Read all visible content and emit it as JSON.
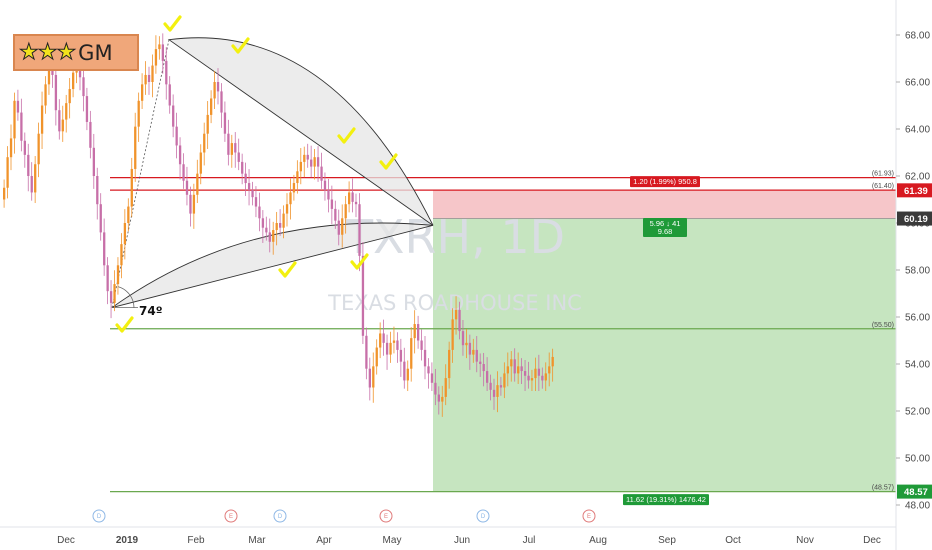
{
  "logo": {
    "stars": "★★★",
    "text": "GM"
  },
  "watermark": {
    "symbol": "TXRH, 1D",
    "name": "TEXAS ROADHOUSE INC"
  },
  "angle_label": "74º",
  "colors": {
    "up": "#f0932b",
    "down": "#c76fa8",
    "red_line": "#d71920",
    "green_line": "#6aa84f",
    "profit_zone": "#c6e5c0",
    "loss_zone": "#f6c6c9",
    "check": "#f3f00f",
    "logo_bg": "#f0a77a"
  },
  "chart_data": {
    "type": "candlestick",
    "title": "",
    "xlabel": "",
    "ylabel": "",
    "ylim": [
      47.0,
      69.5
    ],
    "y_ticks": [
      "48.00",
      "50.00",
      "52.00",
      "54.00",
      "56.00",
      "58.00",
      "60.00",
      "62.00",
      "64.00",
      "66.00",
      "68.00"
    ],
    "x_ticks": [
      "Dec",
      "2019",
      "Feb",
      "Mar",
      "Apr",
      "May",
      "Jun",
      "Jul",
      "Aug",
      "Sep",
      "Oct",
      "Nov",
      "Dec"
    ],
    "closes": [
      61.5,
      62.8,
      63.6,
      65.2,
      64.7,
      63.5,
      62.9,
      62.0,
      61.3,
      62.5,
      63.8,
      65.0,
      65.9,
      66.8,
      66.3,
      64.8,
      63.9,
      64.4,
      65.1,
      65.7,
      66.4,
      66.9,
      66.2,
      65.4,
      64.3,
      63.2,
      62.0,
      60.8,
      59.6,
      58.2,
      57.1,
      56.6,
      57.4,
      58.2,
      59.1,
      60.0,
      60.7,
      62.3,
      64.1,
      65.2,
      65.9,
      66.3,
      66.0,
      66.7,
      67.4,
      67.6,
      66.9,
      65.9,
      65.0,
      64.1,
      63.3,
      62.5,
      61.8,
      61.2,
      60.4,
      61.2,
      62.1,
      63.0,
      63.8,
      64.6,
      65.3,
      66.0,
      65.6,
      64.7,
      63.8,
      62.9,
      63.4,
      63.0,
      62.6,
      62.1,
      61.7,
      61.4,
      61.1,
      60.7,
      60.2,
      59.8,
      59.6,
      59.2,
      59.7,
      60.0,
      59.8,
      60.4,
      60.8,
      61.3,
      61.7,
      62.2,
      62.6,
      62.9,
      62.7,
      62.4,
      62.8,
      62.4,
      61.8,
      61.4,
      61.0,
      60.6,
      60.1,
      59.5,
      60.2,
      60.8,
      61.3,
      60.9,
      60.8,
      58.6,
      55.2,
      53.8,
      53.0,
      53.9,
      54.7,
      55.3,
      54.9,
      54.4,
      54.9,
      55.0,
      54.6,
      54.1,
      53.3,
      53.8,
      55.1,
      55.7,
      55.0,
      54.6,
      53.9,
      53.6,
      53.2,
      52.7,
      52.4,
      52.6,
      53.4,
      54.6,
      55.9,
      56.3,
      55.4,
      54.8,
      54.9,
      54.4,
      54.6,
      54.1,
      54.0,
      53.7,
      53.2,
      52.9,
      52.6,
      53.1,
      53.0,
      53.6,
      53.9,
      54.2,
      53.6,
      53.9,
      53.7,
      53.5,
      53.3,
      53.4,
      53.8,
      53.5,
      53.3,
      53.6,
      53.9,
      54.3
    ],
    "levels": {
      "upper_red": "(61.93)",
      "lower_red": "(61.40)",
      "green": "(55.50)",
      "bottom_green": "(48.57)"
    },
    "price_tags": {
      "red": "61.39",
      "current": "60.19",
      "stop": "48.57"
    },
    "position": {
      "risk_label": "1.20 (1.99%) 950.8",
      "ratio_label_line1": "5.96 ↓ 41",
      "ratio_label_line2": "9.68",
      "reward_label": "11.62 (19.31%) 1476.42"
    },
    "events": [
      "D",
      "E",
      "D",
      "E",
      "D",
      "E"
    ]
  }
}
